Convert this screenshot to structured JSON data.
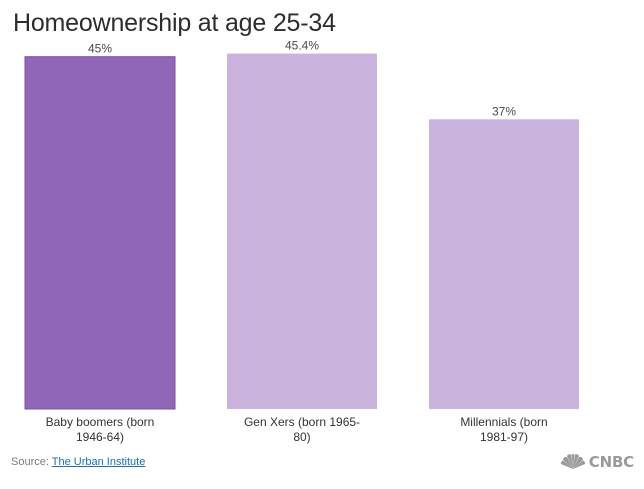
{
  "colors": {
    "highlight": "#9066b8",
    "base": "#c9b3dc",
    "edge": "#7b4fa3"
  },
  "logo": {
    "text": "CNBC",
    "icon": "peacock-icon"
  },
  "source": {
    "prefix": "Source: ",
    "link": "The Urban Institute"
  },
  "chart_data": {
    "type": "bar",
    "title": "Homeownership at age 25-34",
    "xlabel": "",
    "ylabel": "",
    "ylim": [
      0,
      45.6
    ],
    "grid": false,
    "categories": [
      [
        "Baby boomers (born",
        "1946-64)"
      ],
      [
        "Gen Xers (born 1965-",
        "80)"
      ],
      [
        "Millennials (born",
        "1981-97)"
      ]
    ],
    "values": [
      45,
      45.4,
      37
    ],
    "value_labels": [
      "45%",
      "45.4%",
      "37%"
    ],
    "highlight_index": 0
  }
}
